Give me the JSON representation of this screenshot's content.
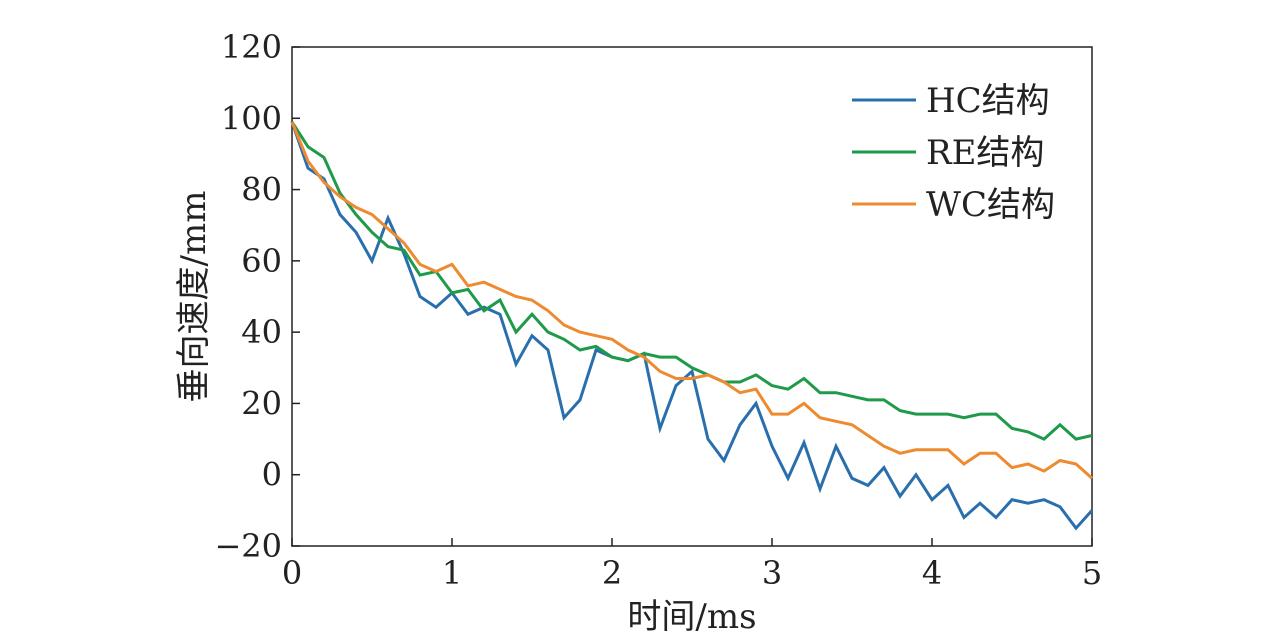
{
  "chart_data": {
    "type": "line",
    "title": "",
    "xlabel": "时间/ms",
    "ylabel": "垂向速度/mm",
    "xlim": [
      0,
      5
    ],
    "ylim": [
      -20,
      120
    ],
    "xticks": [
      0,
      1,
      2,
      3,
      4,
      5
    ],
    "yticks": [
      -20,
      0,
      20,
      40,
      60,
      80,
      100,
      120
    ],
    "xtick_labels": [
      "0",
      "1",
      "2",
      "3",
      "4",
      "5"
    ],
    "ytick_labels": [
      "−20",
      "0",
      "20",
      "40",
      "60",
      "80",
      "100",
      "120"
    ],
    "grid": false,
    "legend_position": "top-right",
    "x": [
      0,
      0.1,
      0.2,
      0.3,
      0.4,
      0.5,
      0.6,
      0.7,
      0.8,
      0.9,
      1.0,
      1.1,
      1.2,
      1.3,
      1.4,
      1.5,
      1.6,
      1.7,
      1.8,
      1.9,
      2.0,
      2.1,
      2.2,
      2.3,
      2.4,
      2.5,
      2.6,
      2.7,
      2.8,
      2.9,
      3.0,
      3.1,
      3.2,
      3.3,
      3.4,
      3.5,
      3.6,
      3.7,
      3.8,
      3.9,
      4.0,
      4.1,
      4.2,
      4.3,
      4.4,
      4.5,
      4.6,
      4.7,
      4.8,
      4.9,
      5.0
    ],
    "series": [
      {
        "name": "HC结构",
        "color": "#2a6fad",
        "values": [
          99,
          86,
          83,
          73,
          68,
          60,
          72,
          62,
          50,
          47,
          51,
          45,
          47,
          45,
          31,
          39,
          35,
          16,
          21,
          35,
          33,
          32,
          34,
          13,
          25,
          29,
          10,
          4,
          14,
          20,
          8,
          -1,
          9,
          -4,
          8,
          -1,
          -3,
          2,
          -6,
          0,
          -7,
          -3,
          -12,
          -8,
          -12,
          -7,
          -8,
          -7,
          -9,
          -15,
          -10
        ]
      },
      {
        "name": "RE结构",
        "color": "#1f9a4a",
        "values": [
          99,
          92,
          89,
          79,
          73,
          68,
          64,
          63,
          56,
          57,
          51,
          52,
          46,
          49,
          40,
          45,
          40,
          38,
          35,
          36,
          33,
          32,
          34,
          33,
          33,
          30,
          28,
          26,
          26,
          28,
          25,
          24,
          27,
          23,
          23,
          22,
          21,
          21,
          18,
          17,
          17,
          17,
          16,
          17,
          17,
          13,
          12,
          10,
          14,
          10,
          11
        ]
      },
      {
        "name": "WC结构",
        "color": "#ee8a2f",
        "values": [
          99,
          88,
          82,
          78,
          75,
          73,
          69,
          65,
          59,
          57,
          59,
          53,
          54,
          52,
          50,
          49,
          46,
          42,
          40,
          39,
          38,
          35,
          33,
          29,
          27,
          27,
          28,
          26,
          23,
          24,
          17,
          17,
          20,
          16,
          15,
          14,
          11,
          8,
          6,
          7,
          7,
          7,
          3,
          6,
          6,
          2,
          3,
          1,
          4,
          3,
          -1
        ]
      }
    ]
  }
}
